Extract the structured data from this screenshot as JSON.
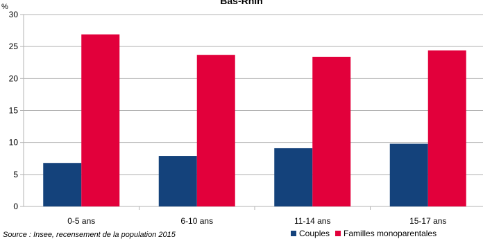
{
  "chart_data": {
    "type": "bar",
    "title": "Bas-Rhin",
    "ylabel": "%",
    "xlabel": "",
    "categories": [
      "0-5 ans",
      "6-10 ans",
      "11-14 ans",
      "15-17 ans"
    ],
    "series": [
      {
        "name": "Couples",
        "color": "#14427b",
        "values": [
          6.8,
          7.9,
          9.1,
          9.8
        ]
      },
      {
        "name": "Familles monoparentales",
        "color": "#e2003b",
        "values": [
          26.9,
          23.7,
          23.4,
          24.4
        ]
      }
    ],
    "ylim": [
      0,
      30
    ],
    "yticks": [
      0,
      5,
      10,
      15,
      20,
      25,
      30
    ],
    "grid": true,
    "legend_position": "bottom-right"
  },
  "source": "Source : Insee, recensement de la population 2015"
}
